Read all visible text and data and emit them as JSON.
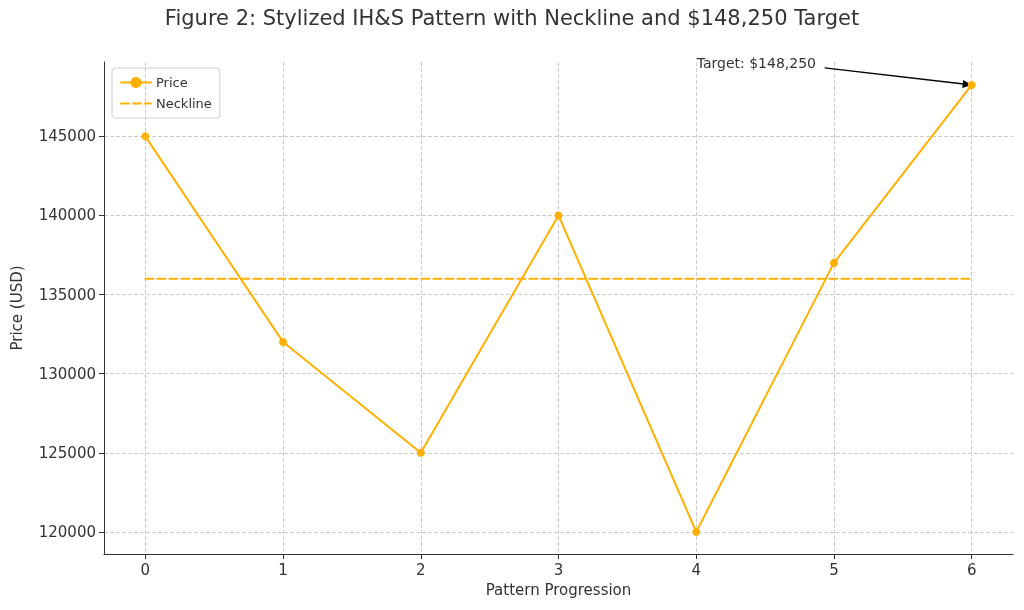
{
  "chart_data": {
    "type": "line",
    "title": "Figure 2: Stylized IH&S Pattern with Neckline and $148,250 Target",
    "xlabel": "Pattern Progression",
    "ylabel": "Price (USD)",
    "x": [
      0,
      1,
      2,
      3,
      4,
      5,
      6
    ],
    "series": [
      {
        "name": "Price",
        "color": "#ffb000",
        "values": [
          145000,
          132000,
          125000,
          140000,
          120000,
          137000,
          148250
        ],
        "marker": "circle",
        "line_style": "solid"
      },
      {
        "name": "Neckline",
        "color": "#ffb000",
        "x": [
          0,
          6
        ],
        "values": [
          136000,
          136000
        ],
        "marker": "none",
        "line_style": "dashed"
      }
    ],
    "annotations": [
      {
        "text": "Target: $148,250",
        "x": 6,
        "y": 148250
      }
    ],
    "xlim": [
      -0.3,
      6.3
    ],
    "xticks": [
      0,
      1,
      2,
      3,
      4,
      5,
      6
    ],
    "ylim": [
      118600,
      149700
    ],
    "yticks": [
      120000,
      125000,
      130000,
      135000,
      140000,
      145000
    ],
    "grid": true,
    "legend": "top left"
  }
}
